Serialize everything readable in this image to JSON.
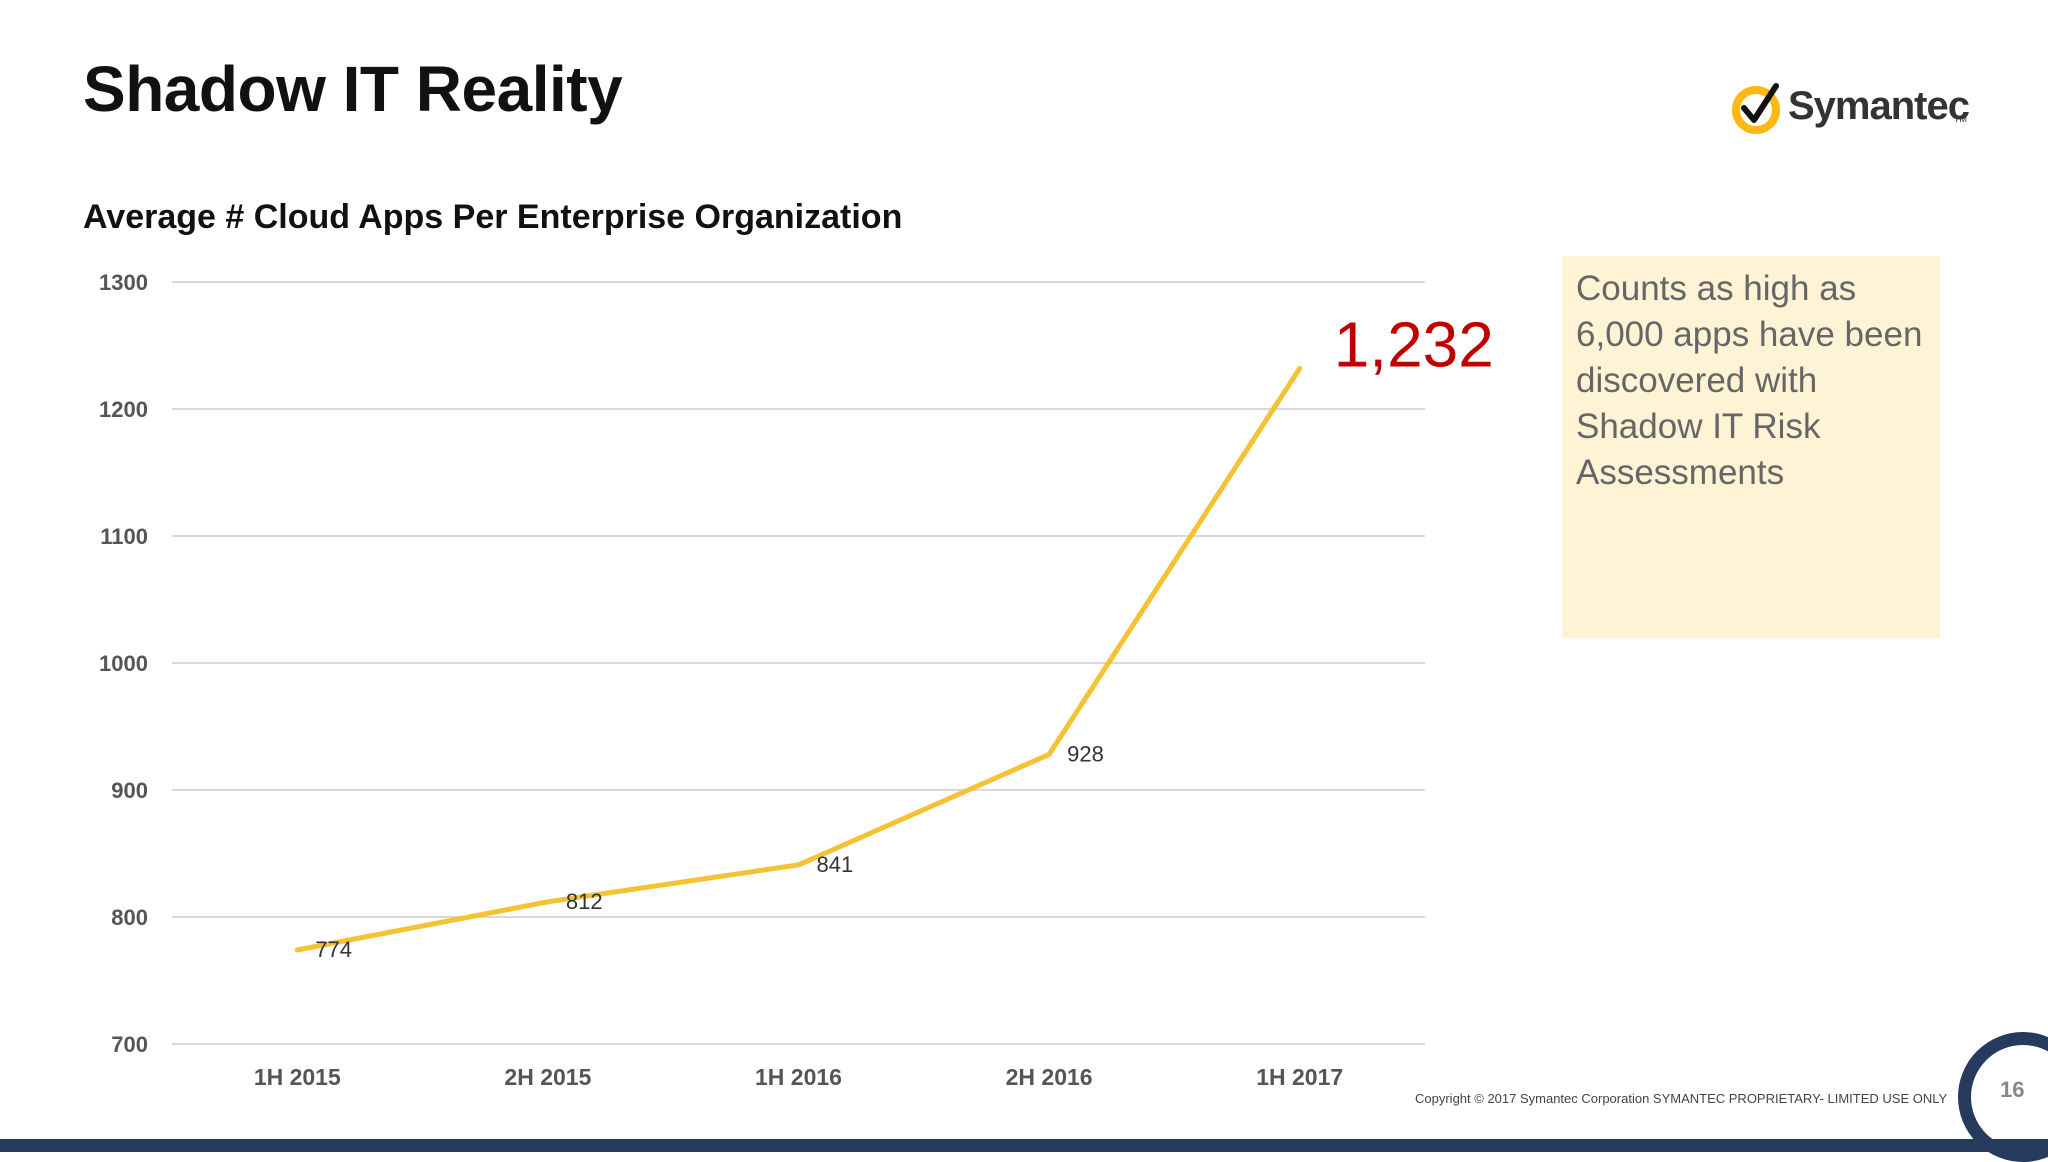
{
  "slide": {
    "title": "Shadow IT Reality",
    "logo_text": "Symantec",
    "logo_tm": "TM",
    "callout": "Counts as high as 6,000 apps have been discovered with Shadow IT Risk Assessments",
    "copyright": "Copyright © 2017 Symantec Corporation SYMANTEC PROPRIETARY- LIMITED USE ONLY",
    "page_number": "16",
    "colors": {
      "line": "#f4c232",
      "highlight": "#c00000",
      "callout_bg": "#fff3d6",
      "brand_navy": "#263a5e",
      "logo_yellow": "#fdb913"
    }
  },
  "chart_data": {
    "type": "line",
    "title": "Average # Cloud Apps Per Enterprise Organization",
    "categories": [
      "1H 2015",
      "2H 2015",
      "1H 2016",
      "2H 2016",
      "1H 2017"
    ],
    "series": [
      {
        "values": [
          774,
          812,
          841,
          928,
          1232
        ]
      }
    ],
    "data_labels": [
      "774",
      "812",
      "841",
      "928",
      "1,232"
    ],
    "yticks": [
      "700",
      "800",
      "900",
      "1000",
      "1100",
      "1200",
      "1300"
    ],
    "ylim": [
      700,
      1300
    ],
    "grid": true,
    "legend": "none"
  }
}
